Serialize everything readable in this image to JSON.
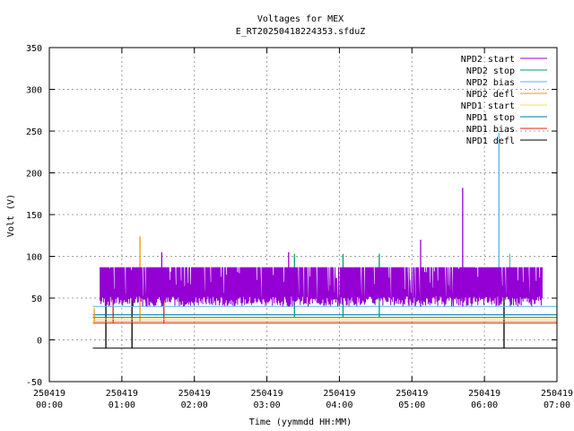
{
  "chart_data": {
    "type": "line",
    "title": "Voltages for MEX",
    "subtitle": "E_RT20250418224353.sfduZ",
    "xlabel": "Time (yymmdd HH:MM)",
    "ylabel": "Volt (V)",
    "xlim_hours": [
      0,
      7
    ],
    "ylim": [
      -50,
      350
    ],
    "grid": true,
    "legend_position": "top-right",
    "y_ticks": [
      -50,
      0,
      50,
      100,
      150,
      200,
      250,
      300,
      350
    ],
    "x_ticks": [
      {
        "date": "250419",
        "time": "00:00",
        "hour": 0
      },
      {
        "date": "250419",
        "time": "01:00",
        "hour": 1
      },
      {
        "date": "250419",
        "time": "02:00",
        "hour": 2
      },
      {
        "date": "250419",
        "time": "03:00",
        "hour": 3
      },
      {
        "date": "250419",
        "time": "04:00",
        "hour": 4
      },
      {
        "date": "250419",
        "time": "05:00",
        "hour": 5
      },
      {
        "date": "250419",
        "time": "06:00",
        "hour": 6
      },
      {
        "date": "250419",
        "time": "07:00",
        "hour": 7
      }
    ],
    "series": [
      {
        "name": "NPD2 start",
        "color": "#9400d3",
        "segments": [
          {
            "from": 0.7,
            "to": 6.8,
            "low": 40,
            "high": 87
          }
        ],
        "spikes": [
          {
            "t": 1.55,
            "v": 105
          },
          {
            "t": 3.3,
            "v": 105
          },
          {
            "t": 5.12,
            "v": 120
          },
          {
            "t": 5.7,
            "v": 182
          }
        ]
      },
      {
        "name": "NPD2 stop",
        "color": "#009e73",
        "segments": [
          {
            "from": 0.6,
            "to": 7.0,
            "low": 27,
            "high": 27
          }
        ],
        "spikes": [
          {
            "t": 3.38,
            "v": 103
          },
          {
            "t": 4.05,
            "v": 103
          },
          {
            "t": 4.55,
            "v": 103
          }
        ]
      },
      {
        "name": "NPD2 bias",
        "color": "#56b4e9",
        "segments": [
          {
            "from": 0.6,
            "to": 7.0,
            "low": 40,
            "high": 40
          }
        ],
        "spikes": [
          {
            "t": 0.72,
            "v": 40
          },
          {
            "t": 6.2,
            "v": 248
          },
          {
            "t": 6.35,
            "v": 103
          }
        ]
      },
      {
        "name": "NPD2 defl",
        "color": "#e69f00",
        "segments": [
          {
            "from": 0.6,
            "to": 7.0,
            "low": 22,
            "high": 22
          }
        ],
        "spikes": [
          {
            "t": 1.25,
            "v": 124
          },
          {
            "t": 0.62,
            "v": 38
          }
        ]
      },
      {
        "name": "NPD1 start",
        "color": "#f0e442",
        "segments": [
          {
            "from": 0.6,
            "to": 7.0,
            "low": 25,
            "high": 25
          }
        ],
        "spikes": []
      },
      {
        "name": "NPD1 stop",
        "color": "#0072b2",
        "segments": [
          {
            "from": 0.6,
            "to": 7.0,
            "low": 30,
            "high": 30
          }
        ],
        "spikes": []
      },
      {
        "name": "NPD1 bias",
        "color": "#e51e10",
        "segments": [
          {
            "from": 0.6,
            "to": 7.0,
            "low": 20,
            "high": 20
          }
        ],
        "spikes": [
          {
            "t": 0.88,
            "v": 62
          },
          {
            "t": 1.58,
            "v": 62
          }
        ]
      },
      {
        "name": "NPD1 defl",
        "color": "#000000",
        "segments": [
          {
            "from": 0.6,
            "to": 7.0,
            "low": -10,
            "high": -10
          }
        ],
        "spikes": [
          {
            "t": 0.78,
            "v": 72
          },
          {
            "t": 1.14,
            "v": 72
          },
          {
            "t": 6.27,
            "v": 62
          }
        ]
      }
    ]
  }
}
